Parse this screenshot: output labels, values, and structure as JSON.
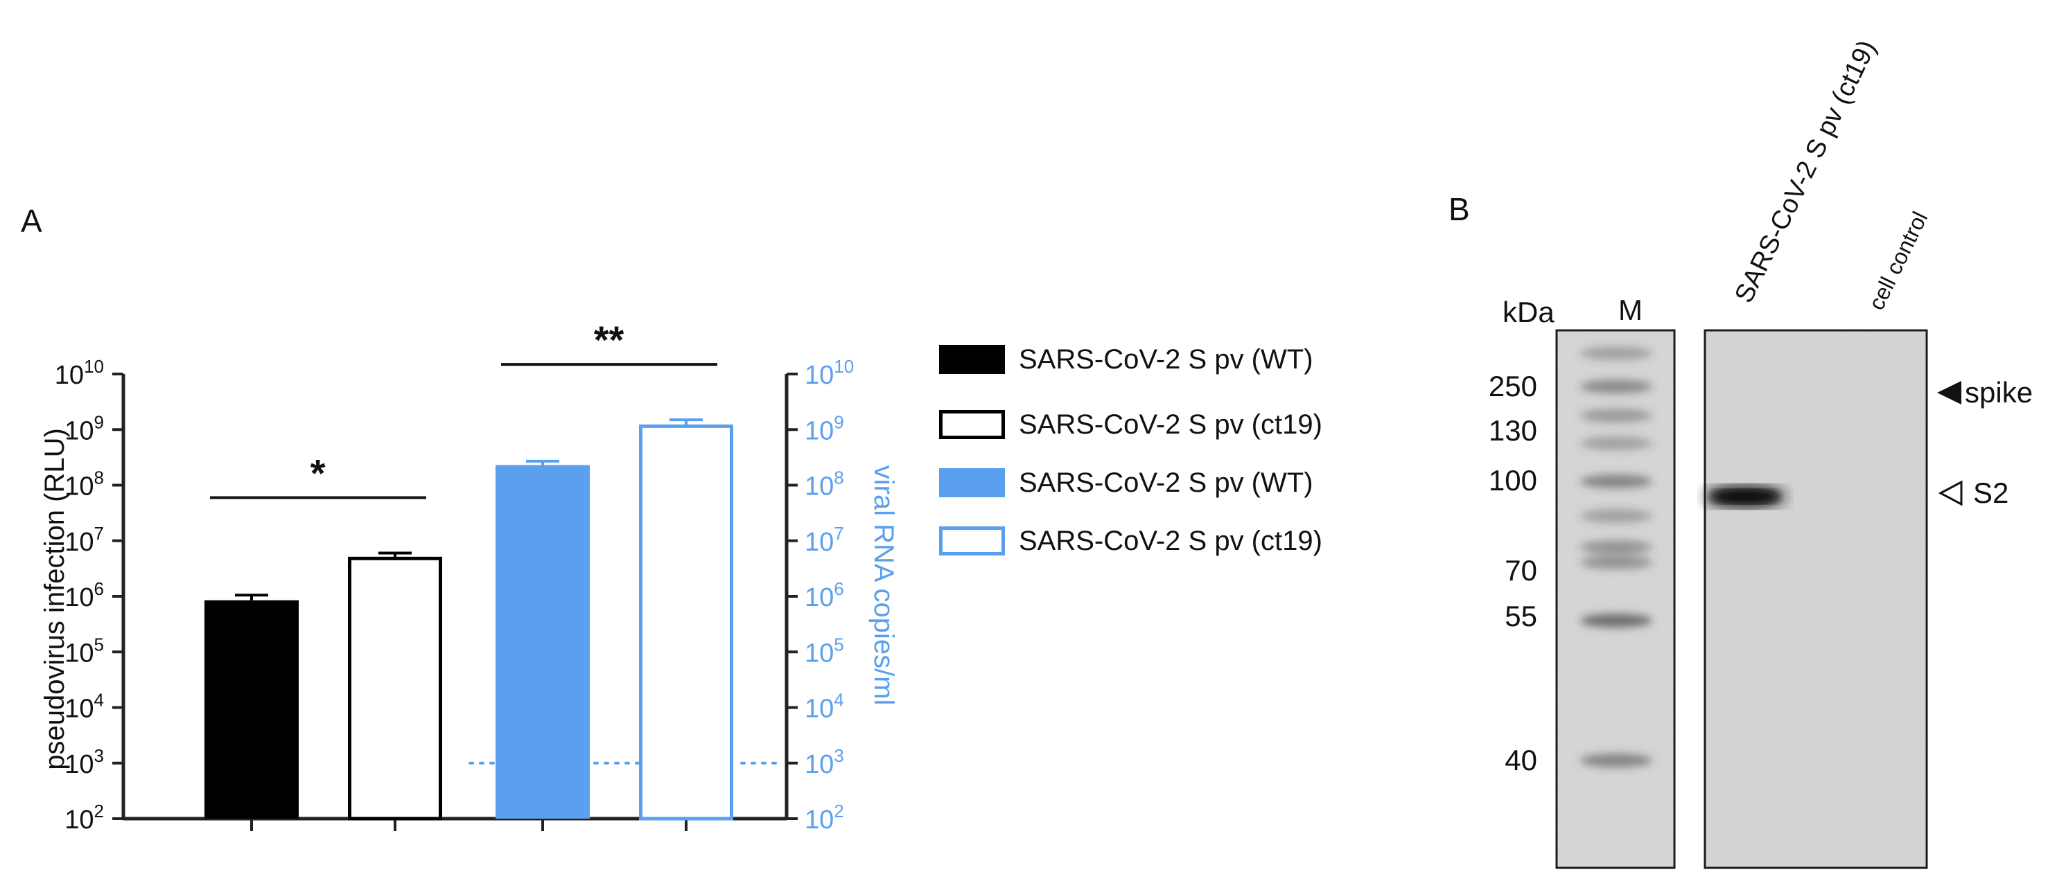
{
  "panel_a": {
    "label": "A",
    "chart_data": {
      "type": "bar",
      "yscale": "log",
      "ylim": [
        100,
        10000000000
      ],
      "y_ticks": [
        "2",
        "3",
        "4",
        "5",
        "6",
        "7",
        "8",
        "9",
        "10"
      ],
      "y_tick_base": "10",
      "ylabel": "pseudovirus infection (RLU)",
      "ylabel_right": "viral RNA copies/ml",
      "detection_limit": 1000,
      "bars": [
        {
          "legend": "SARS-CoV-2 S pv (WT)",
          "axis": "left",
          "style": "filled",
          "color": "#000000",
          "value": 850000,
          "error": 200000
        },
        {
          "legend": "SARS-CoV-2 S pv (ct19)",
          "axis": "left",
          "style": "open",
          "color": "#000000",
          "value": 4800000,
          "error": 1200000
        },
        {
          "legend": "SARS-CoV-2 S pv (WT)",
          "axis": "right",
          "style": "filled",
          "color": "#5aa0ee",
          "value": 230000000,
          "error": 40000000
        },
        {
          "legend": "SARS-CoV-2 S pv (ct19)",
          "axis": "right",
          "style": "open",
          "color": "#5aa0ee",
          "value": 1150000000,
          "error": 350000000
        }
      ],
      "significance": [
        {
          "label": "*",
          "bars": [
            0,
            1
          ]
        },
        {
          "label": "**",
          "bars": [
            2,
            3
          ]
        }
      ],
      "colors": {
        "black": "#000000",
        "blue": "#5aa0ee"
      }
    }
  },
  "panel_b": {
    "label": "B",
    "kda_label": "kDa",
    "marker_lane_label": "M",
    "lane_labels": [
      "SARS-CoV-2 S pv (ct19)",
      "cell control"
    ],
    "marker_sizes": [
      "250",
      "130",
      "100",
      "70",
      "55",
      "40"
    ],
    "annotations": [
      {
        "label": "spike",
        "arrow": "filled"
      },
      {
        "label": "S2",
        "arrow": "open"
      }
    ]
  }
}
